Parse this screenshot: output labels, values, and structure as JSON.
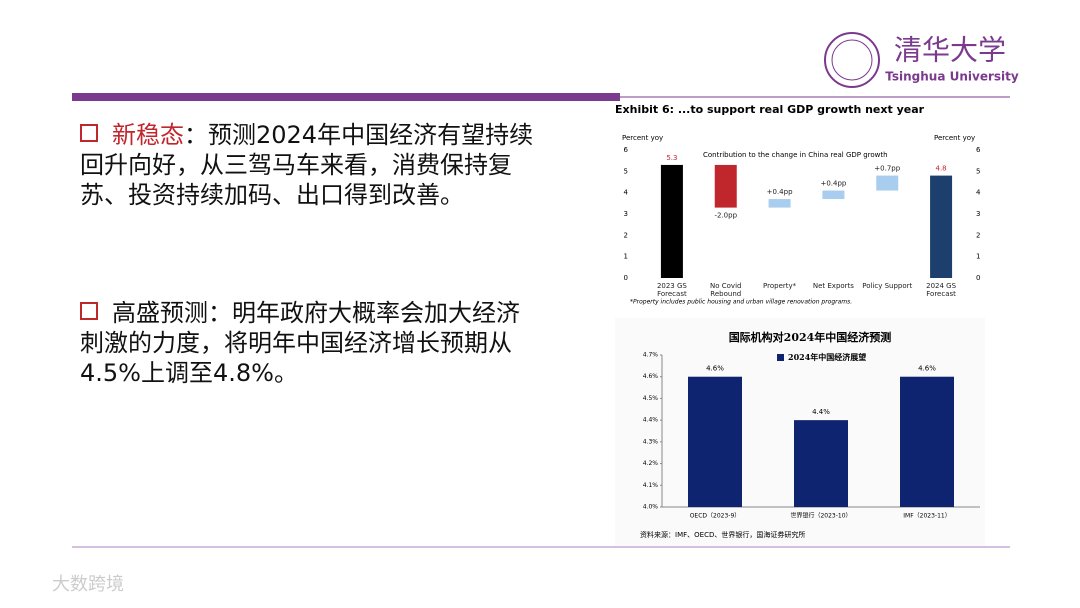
{
  "header": {
    "logo_cn": "清华大学",
    "logo_en": "Tsinghua University"
  },
  "bullets": [
    {
      "lead": "新稳态",
      "text": "：预测2024年中国经济有望持续回升向好，从三驾马车来看，消费保持复苏、投资持续加码、出口得到改善。"
    },
    {
      "lead": "高盛预测",
      "text": "：明年政府大概率会加大经济刺激的力度，将明年中国经济增长预期从4.5%上调至4.8%。"
    }
  ],
  "watermark": "大数跨境",
  "chart_data": [
    {
      "type": "waterfall",
      "title": "Exhibit 6: ...to support real GDP growth next year",
      "subtitle": "Contribution to the change in China real GDP growth",
      "y_label": "Percent yoy",
      "y2_label": "Percent yoy",
      "categories": [
        "2023 GS Forecast",
        "No Covid Rebound",
        "Property*",
        "Net Exports",
        "Policy Support",
        "2024 GS Forecast"
      ],
      "measure": [
        "total",
        "relative",
        "relative",
        "relative",
        "relative",
        "total"
      ],
      "values": [
        5.3,
        -2.0,
        0.4,
        0.4,
        0.7,
        4.8
      ],
      "value_labels": [
        "5.3",
        "-2.0pp",
        "+0.4pp",
        "+0.4pp",
        "+0.7pp",
        "4.8"
      ],
      "colors": [
        "#000000",
        "#c0272d",
        "#a9cdee",
        "#a9cdee",
        "#a9cdee",
        "#1d3f6e"
      ],
      "ylim": [
        0,
        6
      ],
      "yticks": [
        0,
        1,
        2,
        3,
        4,
        5,
        6
      ],
      "y2lim": [
        0,
        6
      ],
      "y2ticks": [
        0,
        1,
        2,
        3,
        4,
        5,
        6
      ],
      "footnote": "*Property includes public housing and urban village renovation programs."
    },
    {
      "type": "bar",
      "title": "国际机构对2024年中国经济预测",
      "legend": "2024年中国经济展望",
      "categories": [
        "OECD（2023-9）",
        "世界银行（2023-10）",
        "IMF（2023-11）"
      ],
      "values": [
        4.6,
        4.4,
        4.6
      ],
      "value_labels": [
        "4.6%",
        "4.4%",
        "4.6%"
      ],
      "color": "#0e2470",
      "ylim": [
        4.0,
        4.7
      ],
      "yticks": [
        {
          "value": 4.0,
          "label": "4.0%"
        },
        {
          "value": 4.1,
          "label": "4.1%"
        },
        {
          "value": 4.2,
          "label": "4.2%"
        },
        {
          "value": 4.3,
          "label": "4.3%"
        },
        {
          "value": 4.4,
          "label": "4.4%"
        },
        {
          "value": 4.5,
          "label": "4.5%"
        },
        {
          "value": 4.6,
          "label": "4.6%"
        },
        {
          "value": 4.7,
          "label": "4.7%"
        }
      ],
      "source": "资料来源：IMF、OECD、世界银行，国海证券研究所"
    }
  ]
}
